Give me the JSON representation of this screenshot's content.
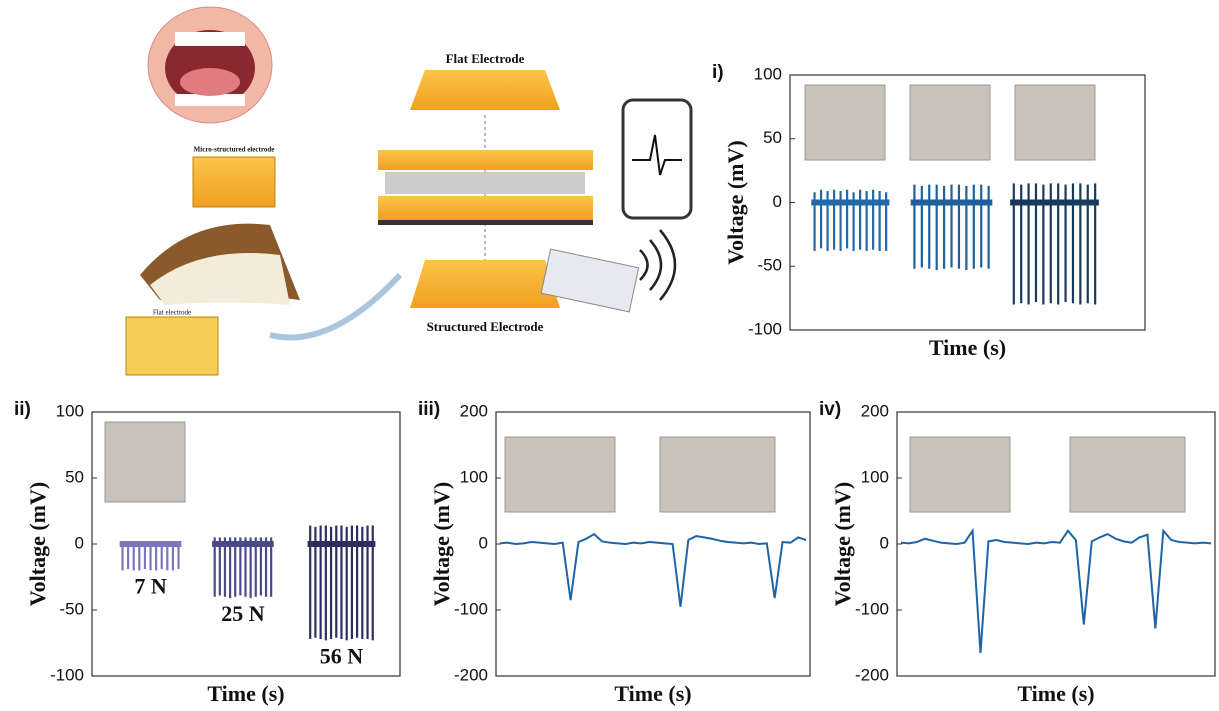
{
  "diagram": {
    "labels": [
      "Flat Electrode",
      "Micro-structured electrode",
      "Flat electrode",
      "Structured Electrode"
    ]
  },
  "chart_data": [
    {
      "type": "spike",
      "panel": "i)",
      "xlabel": "Time (s)",
      "ylabel": "Voltage (mV)",
      "ylim": [
        -100,
        100
      ],
      "yticks": [
        -100,
        -50,
        0,
        50,
        100
      ],
      "series": [
        {
          "color": "#2368a8",
          "values": [
            -38,
            -36,
            -38,
            -37,
            -38,
            -36,
            -38,
            -37,
            -38,
            -37,
            -38,
            -38
          ],
          "peaks": [
            8,
            10,
            9,
            10,
            9,
            10,
            8,
            10,
            9,
            10,
            9,
            8
          ]
        },
        {
          "color": "#1f5f9a",
          "values": [
            -52,
            -51,
            -52,
            -53,
            -52,
            -51,
            -52,
            -53,
            -52,
            -51,
            -52
          ],
          "peaks": [
            14,
            13,
            14,
            14,
            13,
            14,
            14,
            13,
            14,
            14,
            13
          ]
        },
        {
          "color": "#1a3a5c",
          "values": [
            -80,
            -79,
            -80,
            -78,
            -80,
            -79,
            -80,
            -78,
            -79,
            -80,
            -79,
            -80
          ],
          "peaks": [
            15,
            14,
            15,
            15,
            14,
            15,
            15,
            14,
            15,
            15,
            14,
            15
          ]
        }
      ]
    },
    {
      "type": "spike",
      "panel": "ii)",
      "xlabel": "Time (s)",
      "ylabel": "Voltage (mV)",
      "ylim": [
        -100,
        100
      ],
      "yticks": [
        -100,
        -50,
        0,
        50,
        100
      ],
      "series": [
        {
          "name": "7 N",
          "color": "#7a78b8",
          "values": [
            -20,
            -19,
            -20,
            -20,
            -19,
            -20,
            -20,
            -19,
            -20,
            -20,
            -19
          ],
          "peaks": [
            2,
            2,
            2,
            2,
            2,
            2,
            2,
            2,
            2,
            2,
            2
          ]
        },
        {
          "name": "25 N",
          "color": "#4a4a8a",
          "values": [
            -40,
            -39,
            -40,
            -41,
            -40,
            -39,
            -40,
            -41,
            -40,
            -39,
            -40,
            -40
          ],
          "peaks": [
            5,
            5,
            5,
            5,
            5,
            5,
            5,
            5,
            5,
            5,
            5,
            5
          ]
        },
        {
          "name": "56 N",
          "color": "#2e2e5e",
          "values": [
            -72,
            -71,
            -72,
            -73,
            -72,
            -71,
            -72,
            -73,
            -72,
            -71,
            -72,
            -72,
            -73
          ],
          "peaks": [
            14,
            13,
            14,
            14,
            13,
            14,
            14,
            13,
            14,
            14,
            13,
            14,
            14
          ]
        }
      ]
    },
    {
      "type": "line",
      "panel": "iii)",
      "xlabel": "Time (s)",
      "ylabel": "Voltage (mV)",
      "ylim": [
        -200,
        200
      ],
      "yticks": [
        -200,
        -100,
        0,
        100,
        200
      ],
      "color": "#1f64a8",
      "values": [
        1,
        2,
        0,
        1,
        3,
        2,
        1,
        0,
        2,
        -85,
        3,
        8,
        15,
        4,
        2,
        1,
        0,
        2,
        1,
        3,
        2,
        1,
        0,
        -95,
        6,
        12,
        10,
        8,
        5,
        3,
        2,
        1,
        2,
        0,
        1,
        -82,
        3,
        2,
        10,
        6
      ]
    },
    {
      "type": "line",
      "panel": "iv)",
      "xlabel": "Time (s)",
      "ylabel": "Voltage (mV)",
      "ylim": [
        -200,
        200
      ],
      "yticks": [
        -200,
        -100,
        0,
        100,
        200
      ],
      "color": "#1f64a8",
      "values": [
        2,
        1,
        3,
        8,
        5,
        2,
        1,
        0,
        2,
        20,
        -165,
        4,
        6,
        3,
        2,
        1,
        0,
        2,
        1,
        3,
        2,
        20,
        6,
        -122,
        4,
        10,
        15,
        8,
        4,
        2,
        10,
        14,
        -128,
        20,
        6,
        3,
        2,
        1,
        2,
        1
      ]
    }
  ]
}
